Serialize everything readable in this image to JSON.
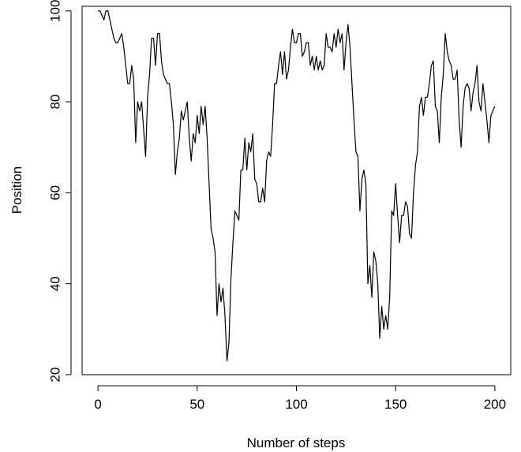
{
  "chart_data": {
    "type": "line",
    "title": "",
    "xlabel": "Number of steps",
    "ylabel": "Position",
    "xlim": [
      -8,
      208
    ],
    "ylim": [
      20,
      101
    ],
    "xticks": [
      0,
      50,
      100,
      150,
      200
    ],
    "yticks": [
      20,
      40,
      60,
      80,
      100
    ],
    "grid": false,
    "line_color": "#000000",
    "series": [
      {
        "x": [
          0,
          1,
          2,
          3,
          4,
          5,
          6,
          7,
          8,
          9,
          10,
          11,
          12,
          13,
          14,
          15,
          16,
          17,
          18,
          19,
          20,
          21,
          22,
          23,
          24,
          25,
          26,
          27,
          28,
          29,
          30,
          31,
          32,
          33,
          34,
          35,
          36,
          37,
          38,
          39,
          40,
          41,
          42,
          43,
          44,
          45,
          46,
          47,
          48,
          49,
          50,
          51,
          52,
          53,
          54,
          55,
          56,
          57,
          58,
          59,
          60,
          61,
          62,
          63,
          64,
          65,
          66,
          67,
          68,
          69,
          70,
          71,
          72,
          73,
          74,
          75,
          76,
          77,
          78,
          79,
          80,
          81,
          82,
          83,
          84,
          85,
          86,
          87,
          88,
          89,
          90,
          91,
          92,
          93,
          94,
          95,
          96,
          97,
          98,
          99,
          100,
          101,
          102,
          103,
          104,
          105,
          106,
          107,
          108,
          109,
          110,
          111,
          112,
          113,
          114,
          115,
          116,
          117,
          118,
          119,
          120,
          121,
          122,
          123,
          124,
          125,
          126,
          127,
          128,
          129,
          130,
          131,
          132,
          133,
          134,
          135,
          136,
          137,
          138,
          139,
          140,
          141,
          142,
          143,
          144,
          145,
          146,
          147,
          148,
          149,
          150,
          151,
          152,
          153,
          154,
          155,
          156,
          157,
          158,
          159,
          160,
          161,
          162,
          163,
          164,
          165,
          166,
          167,
          168,
          169,
          170,
          171,
          172,
          173,
          174,
          175,
          176,
          177,
          178,
          179,
          180,
          181,
          182,
          183,
          184,
          185,
          186,
          187,
          188,
          189,
          190,
          191,
          192,
          193,
          194,
          195,
          196,
          197,
          198,
          199,
          200
        ],
        "y": [
          100,
          100,
          99,
          98,
          100,
          100,
          98,
          96,
          94,
          93,
          93,
          94,
          95,
          92,
          88,
          84,
          84,
          88,
          85,
          71,
          80,
          78,
          80,
          74,
          68,
          81,
          86,
          94,
          94,
          88,
          95,
          95,
          89,
          86,
          85,
          84,
          84,
          80,
          75,
          64,
          69,
          72,
          78,
          76,
          78,
          80,
          72,
          67,
          73,
          71,
          77,
          73,
          79,
          75,
          79,
          72,
          62,
          52,
          50,
          47,
          33,
          40,
          36,
          39,
          33,
          23,
          27,
          41,
          49,
          56,
          55,
          54,
          65,
          65,
          72,
          65,
          71,
          69,
          73,
          63,
          62,
          58,
          58,
          61,
          58,
          67,
          69,
          68,
          75,
          84,
          84,
          88,
          91,
          86,
          91,
          85,
          87,
          92,
          96,
          93,
          93,
          95,
          95,
          90,
          91,
          93,
          93,
          88,
          90,
          87,
          90,
          87,
          89,
          87,
          88,
          95,
          92,
          92,
          91,
          95,
          92,
          96,
          93,
          95,
          87,
          93,
          97,
          92,
          84,
          76,
          69,
          68,
          56,
          63,
          65,
          62,
          40,
          44,
          37,
          47,
          45,
          40,
          28,
          35,
          30,
          33,
          30,
          37,
          56,
          55,
          62,
          55,
          49,
          55,
          55,
          58,
          57,
          51,
          50,
          60,
          66,
          69,
          79,
          81,
          77,
          81,
          81,
          84,
          88,
          89,
          79,
          78,
          71,
          81,
          86,
          95,
          91,
          89,
          88,
          85,
          85,
          87,
          76,
          70,
          79,
          83,
          84,
          83,
          78,
          82,
          84,
          88,
          80,
          78,
          84,
          80,
          76,
          71,
          77,
          78,
          79
        ]
      }
    ]
  }
}
